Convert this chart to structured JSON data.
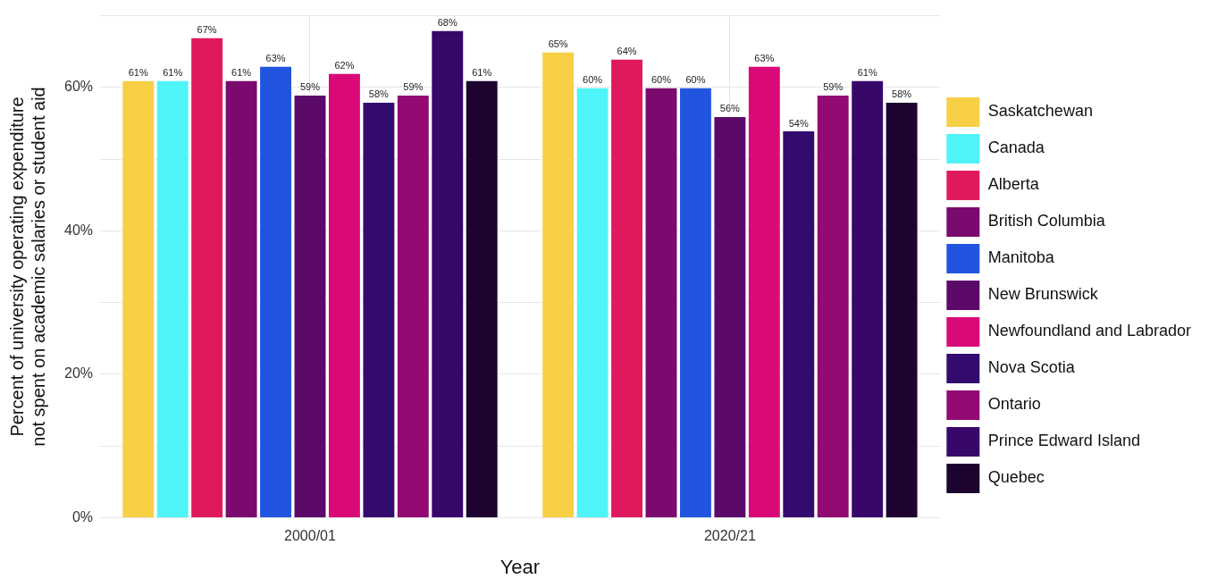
{
  "chart_data": {
    "type": "bar",
    "xlabel": "Year",
    "ylabel": "Percent of university operating expenditure\nnot spent on academic salaries or student aid",
    "categories": [
      "2000/01",
      "2020/21"
    ],
    "series": [
      {
        "name": "Saskatchewan",
        "color": "#f7d046",
        "values": [
          61,
          65
        ],
        "value_labels": [
          "61%",
          "65%"
        ]
      },
      {
        "name": "Canada",
        "color": "#4ff4f8",
        "values": [
          61,
          60
        ],
        "value_labels": [
          "61%",
          "60%"
        ]
      },
      {
        "name": "Alberta",
        "color": "#e0195f",
        "values": [
          67,
          64
        ],
        "value_labels": [
          "67%",
          "64%"
        ]
      },
      {
        "name": "British Columbia",
        "color": "#7a0a6e",
        "values": [
          61,
          60
        ],
        "value_labels": [
          "61%",
          "60%"
        ]
      },
      {
        "name": "Manitoba",
        "color": "#2155e0",
        "values": [
          63,
          60
        ],
        "value_labels": [
          "63%",
          "60%"
        ]
      },
      {
        "name": "New Brunswick",
        "color": "#5b0a6a",
        "values": [
          59,
          56
        ],
        "value_labels": [
          "59%",
          "56%"
        ]
      },
      {
        "name": "Newfoundland and Labrador",
        "color": "#d90a78",
        "values": [
          62,
          63
        ],
        "value_labels": [
          "62%",
          "63%"
        ]
      },
      {
        "name": "Nova Scotia",
        "color": "#330a6e",
        "values": [
          58,
          54
        ],
        "value_labels": [
          "58%",
          "54%"
        ]
      },
      {
        "name": "Ontario",
        "color": "#920a72",
        "values": [
          59,
          59
        ],
        "value_labels": [
          "59%",
          "59%"
        ]
      },
      {
        "name": "Prince Edward Island",
        "color": "#37086a",
        "values": [
          68,
          61
        ],
        "value_labels": [
          "68%",
          "61%"
        ]
      },
      {
        "name": "Quebec",
        "color": "#1c0330",
        "values": [
          61,
          58
        ],
        "value_labels": [
          "61%",
          "58%"
        ]
      }
    ],
    "ylim": [
      0,
      70
    ],
    "yticks": [
      {
        "value": 0,
        "label": "0%"
      },
      {
        "value": 10,
        "label": null
      },
      {
        "value": 20,
        "label": "20%"
      },
      {
        "value": 30,
        "label": null
      },
      {
        "value": 40,
        "label": "40%"
      },
      {
        "value": 50,
        "label": null
      },
      {
        "value": 60,
        "label": "60%"
      },
      {
        "value": 70,
        "label": null
      }
    ],
    "grid": true,
    "legend": "right"
  }
}
